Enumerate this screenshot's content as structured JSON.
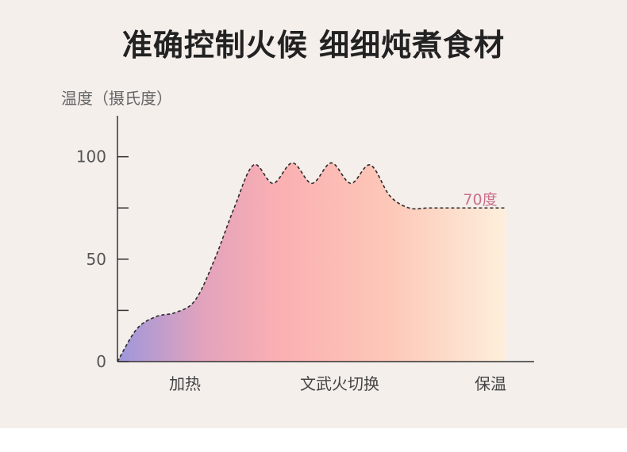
{
  "title": "准确控制火候  细细炖煮食材",
  "chart_data": {
    "type": "area",
    "ylabel": "温度（摄氏度）",
    "ylim": [
      0,
      120
    ],
    "y_ticks": [
      0,
      25,
      50,
      75,
      100
    ],
    "y_tick_labels": [
      "0",
      "",
      "50",
      "",
      "100"
    ],
    "x_stage_labels": [
      "加热",
      "文武火切换",
      "保温"
    ],
    "x": [
      0,
      5,
      10,
      15,
      20,
      25,
      30,
      35,
      40,
      45,
      50,
      55,
      60,
      65,
      70,
      75,
      80,
      85,
      90,
      95,
      100
    ],
    "y": [
      0,
      16,
      22,
      24,
      30,
      50,
      75,
      96,
      87,
      97,
      87,
      97,
      87,
      96,
      81,
      75,
      75,
      75,
      75,
      75,
      75
    ],
    "annotation": "70度",
    "grid": false,
    "legend": "none"
  }
}
